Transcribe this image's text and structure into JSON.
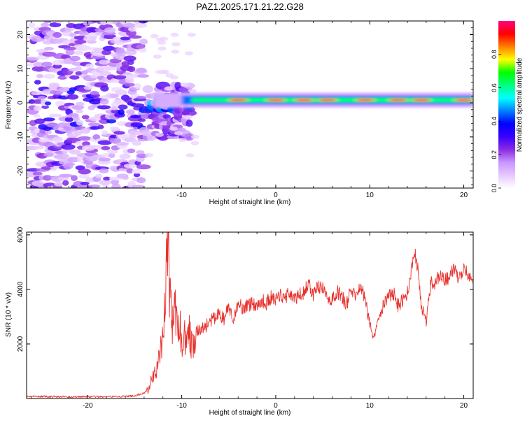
{
  "title": "PAZ1.2025.171.21.22.G28",
  "chart_data": [
    {
      "type": "heatmap",
      "xlabel": "Height of straight line (km)",
      "ylabel": "Frequency (Hz)",
      "xlim": [
        -26.5,
        21
      ],
      "ylim": [
        -25,
        24
      ],
      "xticks": [
        "-20",
        "-10",
        "0",
        "10",
        "20"
      ],
      "xtick_values": [
        -20,
        -10,
        0,
        10,
        20
      ],
      "yticks": [
        "-20",
        "-10",
        "0",
        "10",
        "20"
      ],
      "ytick_values": [
        -20,
        -10,
        0,
        10,
        20
      ],
      "colorbar": {
        "label": "Normalized spectral amplitude",
        "range": [
          0,
          1
        ],
        "ticks": [
          "0.0",
          "0.2",
          "0.4",
          "0.6",
          "0.8"
        ],
        "tick_values": [
          0,
          0.2,
          0.4,
          0.6,
          0.8
        ],
        "colormap": [
          "#ffffff",
          "#e6c8ff",
          "#c896ff",
          "#8a2be2",
          "#3a00ff",
          "#0000ff",
          "#0080ff",
          "#00ffff",
          "#00ff80",
          "#00ff00",
          "#ffff00",
          "#ff8000",
          "#ff0000",
          "#ff0080"
        ]
      },
      "features": {
        "noise_region_x": [
          -26,
          -14
        ],
        "transition_x": [
          -14,
          -9
        ],
        "tone_region_x": [
          -9,
          21
        ],
        "tone_frequency_hz": 0.8,
        "noise_amplitude_range": [
          0.05,
          0.3
        ],
        "tone_amplitude_range": [
          0.5,
          0.9
        ],
        "tone_peaks_x": [
          -4,
          0,
          3,
          5.5,
          9.5,
          13,
          15.5,
          20
        ]
      }
    },
    {
      "type": "line",
      "xlabel": "Height of straight line (km)",
      "ylabel": "SNR (10 * v/v)",
      "xlim": [
        -26.5,
        21
      ],
      "ylim": [
        0,
        6100
      ],
      "xticks": [
        "-20",
        "-10",
        "0",
        "10",
        "20"
      ],
      "xtick_values": [
        -20,
        -10,
        0,
        10,
        20
      ],
      "yticks": [
        "2000",
        "4000",
        "6000"
      ],
      "ytick_values": [
        2000,
        4000,
        6000
      ],
      "series": [
        {
          "color": "#e8302c",
          "x": [
            -26.5,
            -24,
            -22,
            -20,
            -18,
            -16,
            -15,
            -14,
            -13.5,
            -13,
            -12.5,
            -12,
            -11.8,
            -11.5,
            -11.3,
            -11,
            -10.8,
            -10.5,
            -10.2,
            -10,
            -9.5,
            -9,
            -8.5,
            -8,
            -7,
            -6,
            -5.5,
            -5,
            -4.5,
            -4,
            -3.5,
            -3,
            -2.5,
            -2,
            -1.5,
            -1,
            -0.5,
            0,
            0.5,
            1,
            1.5,
            2,
            2.5,
            3,
            3.5,
            4,
            4.5,
            5,
            5.5,
            6,
            6.5,
            7,
            7.5,
            8,
            8.5,
            9,
            9.5,
            10,
            10.3,
            11,
            11.5,
            12,
            12.5,
            13,
            13.5,
            14,
            14.5,
            14.8,
            15.2,
            15.5,
            16,
            16.5,
            17,
            17.5,
            18,
            18.5,
            19,
            19.5,
            20,
            20.5,
            21
          ],
          "values": [
            80,
            70,
            60,
            70,
            60,
            80,
            100,
            200,
            400,
            800,
            1300,
            2100,
            3600,
            5800,
            4200,
            2600,
            3500,
            2400,
            2900,
            1800,
            2600,
            2200,
            2400,
            2500,
            2800,
            3100,
            2900,
            3400,
            2700,
            3600,
            3300,
            3400,
            3500,
            3400,
            3600,
            3500,
            3700,
            3600,
            3800,
            3700,
            3900,
            3600,
            3800,
            3900,
            4200,
            3800,
            4100,
            4000,
            3700,
            3600,
            3900,
            3800,
            3400,
            4000,
            3700,
            4200,
            3600,
            2800,
            2200,
            3100,
            3500,
            3700,
            3900,
            3400,
            3600,
            3900,
            4800,
            5300,
            4600,
            3300,
            2800,
            4300,
            4200,
            4600,
            4300,
            4500,
            4800,
            4300,
            4900,
            4500,
            4200
          ]
        }
      ]
    }
  ]
}
